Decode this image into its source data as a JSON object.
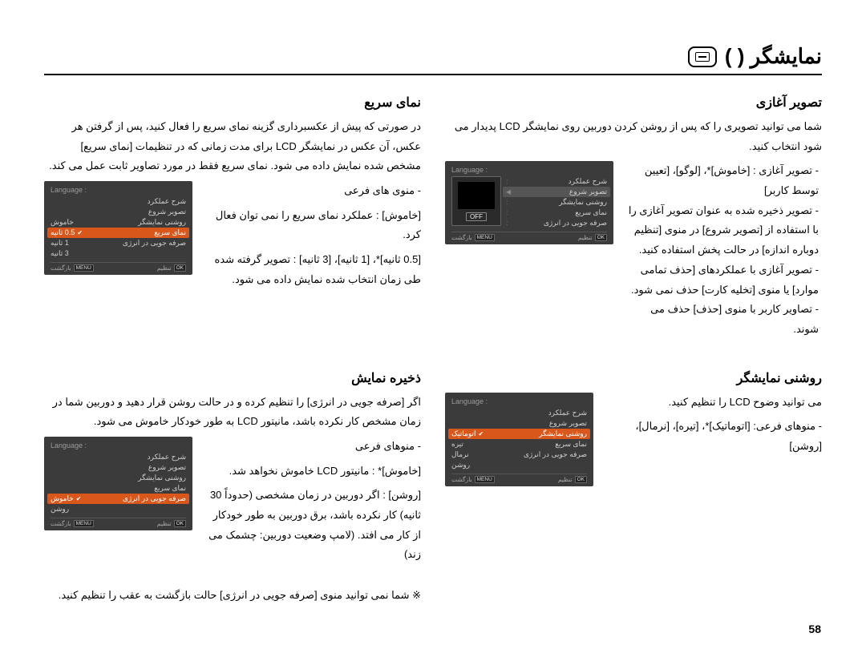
{
  "page_title": "نمایشگر (    )",
  "page_number": "58",
  "sections": {
    "start_image": {
      "title": "تصویر آغازی",
      "intro": "شما می توانید تصویری را که پس از روشن کردن دوربین روی نمایشگر LCD پدیدار می شود انتخاب کنید.",
      "bullets": [
        "تصویر آغازی : [خاموش]*، [لوگو]، [تعیین توسط کاربر]",
        "تصویر ذخیره شده به عنوان تصویر آغازی را با استفاده از [تصویر شروع] در منوی [تنظیم دوباره اندازه] در حالت پخش استفاده کنید.",
        "تصویر آغازی با عملکردهای [حذف تمامی موارد] یا منوی [تخلیه کارت] حذف نمی شود.",
        "تصاویر کاربر با منوی [حذف] حذف می شوند."
      ],
      "menu": {
        "header": "Language :",
        "items": [
          "شرح عملکرد",
          "تصویر شروع",
          "روشنی نمایشگر",
          "نمای سریع",
          "صرفه جویی در انرژی"
        ],
        "off_label": "OFF",
        "footer_back": "بازگشت",
        "footer_set": "تنظیم",
        "btn_menu": "MENU",
        "btn_ok": "OK"
      }
    },
    "quick_view": {
      "title": "نمای سریع",
      "intro": "در صورتی که پیش از عکسبرداری گزینه نمای سریع را فعال کنید، پس از گرفتن هر عکس، آن عکس در نمایشگر LCD برای مدت زمانی که در تنظیمات [نمای سریع] مشخص شده نمایش داده می شود. نمای سریع فقط در مورد تصاویر ثابت عمل می کند.",
      "sub_header": "- منوی های فرعی",
      "bullets": [
        "[خاموش] : عملکرد نمای سریع را نمی توان فعال کرد.",
        "[0.5 ثانیه]*، [1 ثانیه]، [3 ثانیه] : تصویر گرفته شده طی زمان انتخاب شده نمایش داده می شود."
      ],
      "menu": {
        "header": "Language :",
        "items": [
          "شرح عملکرد",
          "تصویر شروع",
          "روشنی نمایشگر",
          "نمای سریع",
          "صرفه جویی در انرژی"
        ],
        "options": [
          "خاموش",
          "0.5 ثانیه",
          "1 ثانیه",
          "3 ثانیه"
        ],
        "selected": 1,
        "footer_back": "بازگشت",
        "footer_set": "تنظیم",
        "btn_menu": "MENU",
        "btn_ok": "OK"
      }
    },
    "brightness": {
      "title": "روشنی نمایشگر",
      "intro": "می توانید وضوح LCD را تنظیم کنید.",
      "bullet": "- منوهای فرعی: [اتوماتیک]*، [تیره]، [نرمال]، [روشن]",
      "menu": {
        "header": "Language :",
        "items": [
          "شرح عملکرد",
          "تصویر شروع",
          "روشنی نمایشگر",
          "نمای سریع",
          "صرفه جویی در انرژی"
        ],
        "options": [
          "اتوماتیک",
          "تیره",
          "نرمال",
          "روشن"
        ],
        "selected": 0,
        "footer_back": "بازگشت",
        "footer_set": "تنظیم",
        "btn_menu": "MENU",
        "btn_ok": "OK"
      }
    },
    "display_save": {
      "title": "ذخیره نمایش",
      "intro": "اگر [صرفه جویی در انرژی] را تنظیم کرده و در حالت روشن قرار دهید و دوربین شما در زمان مشخص کار نکرده باشد، مانیتور LCD به طور خودکار خاموش می شود.",
      "sub_header": "- منوهای فرعی",
      "bullets": [
        "[خاموش]* : مانیتور LCD خاموش نخواهد شد.",
        "[روشن] : اگر دوربین در زمان مشخصی (حدوداً 30 ثانیه) کار نکرده باشد، برق دوربین به طور خودکار از کار می افتد. (لامپ وضعیت دوربین: چشمک می زند)"
      ],
      "menu": {
        "header": "Language :",
        "items": [
          "شرح عملکرد",
          "تصویر شروع",
          "روشنی نمایشگر",
          "نمای سریع",
          "صرفه جویی در انرژی"
        ],
        "options": [
          "خاموش",
          "روشن"
        ],
        "selected": 0,
        "footer_back": "بازگشت",
        "footer_set": "تنظیم",
        "btn_menu": "MENU",
        "btn_ok": "OK"
      }
    }
  },
  "note": "※ شما نمی توانید منوی [صرفه جویی در انرژی] حالت بازگشت به عقب را تنظیم کنید.",
  "colors": {
    "menu_bg": "#3b3b3b",
    "menu_text": "#cfcfcf",
    "menu_header": "#9a9a9a",
    "selected_bg": "#d9571a",
    "page_bg": "#ffffff",
    "text": "#000000"
  }
}
